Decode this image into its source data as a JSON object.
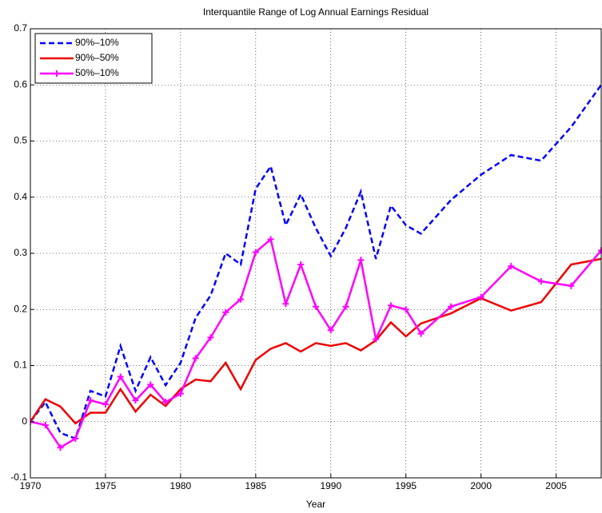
{
  "chart_data": {
    "type": "line",
    "title": "Interquantile Range of Log Annual Earnings Residual",
    "x_label": "Year",
    "x": [
      1970,
      1971,
      1972,
      1973,
      1974,
      1975,
      1976,
      1977,
      1978,
      1979,
      1980,
      1981,
      1982,
      1983,
      1984,
      1985,
      1986,
      1987,
      1988,
      1989,
      1990,
      1991,
      1992,
      1993,
      1994,
      1995,
      1996,
      1998,
      2000,
      2002,
      2004,
      2006,
      2008
    ],
    "series": [
      {
        "name": "90%–10%",
        "color": "#0000ff",
        "linestyle": "dashed",
        "marker": "none",
        "values": [
          0,
          0.035,
          -0.02,
          -0.03,
          0.055,
          0.045,
          0.135,
          0.055,
          0.115,
          0.065,
          0.105,
          0.185,
          0.225,
          0.3,
          0.28,
          0.415,
          0.455,
          0.35,
          0.405,
          0.345,
          0.295,
          0.345,
          0.41,
          0.29,
          0.385,
          0.35,
          0.335,
          0.395,
          0.44,
          0.475,
          0.465,
          0.525,
          0.6
        ]
      },
      {
        "name": "90%–50%",
        "color": "#ee0000",
        "linestyle": "solid",
        "marker": "none",
        "values": [
          0,
          0.04,
          0.027,
          -0.003,
          0.016,
          0.016,
          0.058,
          0.018,
          0.048,
          0.028,
          0.058,
          0.075,
          0.072,
          0.105,
          0.058,
          0.11,
          0.13,
          0.14,
          0.125,
          0.14,
          0.135,
          0.14,
          0.127,
          0.145,
          0.177,
          0.152,
          0.175,
          0.193,
          0.22,
          0.198,
          0.213,
          0.28,
          0.29
        ]
      },
      {
        "name": "50%–10%",
        "color": "#ff00ff",
        "linestyle": "solid",
        "marker": "+",
        "values": [
          0,
          -0.006,
          -0.046,
          -0.03,
          0.038,
          0.031,
          0.08,
          0.038,
          0.066,
          0.035,
          0.05,
          0.113,
          0.15,
          0.195,
          0.218,
          0.302,
          0.325,
          0.21,
          0.28,
          0.205,
          0.163,
          0.205,
          0.288,
          0.147,
          0.207,
          0.2,
          0.157,
          0.205,
          0.222,
          0.277,
          0.25,
          0.242,
          0.305
        ]
      }
    ],
    "xlim": [
      1970,
      2008
    ],
    "xticks": [
      1970,
      1975,
      1980,
      1985,
      1990,
      1995,
      2000,
      2005
    ],
    "ylim": [
      -0.1,
      0.7
    ],
    "yticks": [
      -0.1,
      0,
      0.1,
      0.2,
      0.3,
      0.4,
      0.5,
      0.6,
      0.7
    ],
    "grid": true,
    "legend": "upper left"
  }
}
